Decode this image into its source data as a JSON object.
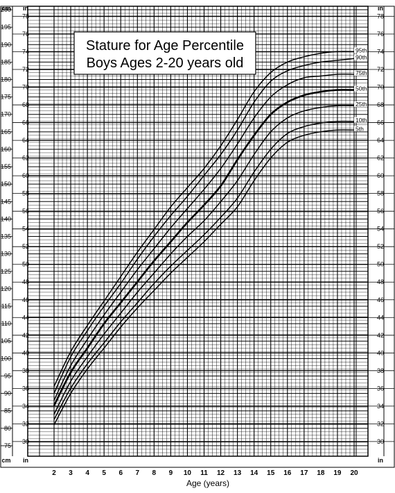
{
  "chart_data": {
    "type": "line",
    "title_lines": [
      "Stature for Age Percentile",
      "Boys Ages 2-20 years old"
    ],
    "xlabel": "Age (years)",
    "x_ticks": [
      2,
      3,
      4,
      5,
      6,
      7,
      8,
      9,
      10,
      11,
      12,
      13,
      14,
      15,
      16,
      17,
      18,
      19,
      20
    ],
    "xlim": [
      2,
      20
    ],
    "y_units": {
      "left_primary": "cm",
      "left_secondary": "in",
      "right": "in"
    },
    "ylim_cm": [
      72,
      201
    ],
    "cm_ticks": [
      75,
      80,
      85,
      90,
      95,
      100,
      105,
      110,
      115,
      120,
      125,
      130,
      135,
      140,
      145,
      150,
      155,
      160,
      165,
      170,
      175,
      180,
      185,
      190,
      195,
      200
    ],
    "in_ticks": [
      30,
      32,
      34,
      36,
      38,
      40,
      42,
      44,
      46,
      48,
      50,
      52,
      54,
      56,
      58,
      60,
      62,
      64,
      66,
      68,
      70,
      72,
      74,
      76,
      78
    ],
    "grid": true,
    "x": [
      2,
      3,
      4,
      5,
      6,
      7,
      8,
      9,
      10,
      11,
      12,
      13,
      14,
      15,
      16,
      17,
      18,
      19,
      20
    ],
    "series": [
      {
        "name": "95th",
        "bold": false,
        "values": [
          92.0,
          102.0,
          109.5,
          116.5,
          123.5,
          130.5,
          137.0,
          143.5,
          149.0,
          154.5,
          161.0,
          168.5,
          176.5,
          182.0,
          185.0,
          186.5,
          187.5,
          188.0,
          188.0
        ]
      },
      {
        "name": "90th",
        "bold": false,
        "values": [
          90.0,
          100.5,
          108.0,
          115.0,
          121.5,
          128.5,
          135.0,
          141.0,
          146.5,
          152.5,
          158.5,
          165.5,
          173.5,
          179.5,
          182.5,
          184.0,
          185.0,
          185.5,
          186.0
        ]
      },
      {
        "name": "75th",
        "bold": false,
        "values": [
          88.0,
          98.0,
          105.5,
          112.5,
          119.0,
          125.5,
          131.5,
          137.5,
          143.0,
          148.5,
          154.5,
          161.5,
          169.0,
          175.0,
          178.5,
          180.5,
          181.0,
          181.5,
          181.5
        ]
      },
      {
        "name": "50th",
        "bold": true,
        "values": [
          86.5,
          96.0,
          103.0,
          110.0,
          116.0,
          122.0,
          128.0,
          133.5,
          139.0,
          144.0,
          149.5,
          157.0,
          164.0,
          170.0,
          173.5,
          175.5,
          176.5,
          177.0,
          177.0
        ]
      },
      {
        "name": "25th",
        "bold": false,
        "values": [
          84.0,
          93.5,
          100.5,
          107.0,
          113.0,
          119.0,
          124.5,
          130.0,
          135.0,
          139.5,
          145.0,
          151.0,
          158.5,
          165.0,
          169.0,
          171.0,
          172.0,
          172.5,
          172.5
        ]
      },
      {
        "name": "10th",
        "bold": false,
        "values": [
          82.5,
          91.5,
          98.5,
          104.5,
          110.5,
          116.0,
          121.5,
          126.5,
          131.0,
          135.5,
          140.5,
          146.0,
          153.5,
          160.0,
          164.5,
          166.5,
          167.5,
          168.0,
          168.0
        ]
      },
      {
        "name": "5th",
        "bold": false,
        "values": [
          81.0,
          90.0,
          97.0,
          103.0,
          109.0,
          114.5,
          119.5,
          124.5,
          129.0,
          133.5,
          138.5,
          143.5,
          151.0,
          157.5,
          162.0,
          164.0,
          165.0,
          165.5,
          165.5
        ]
      }
    ]
  }
}
